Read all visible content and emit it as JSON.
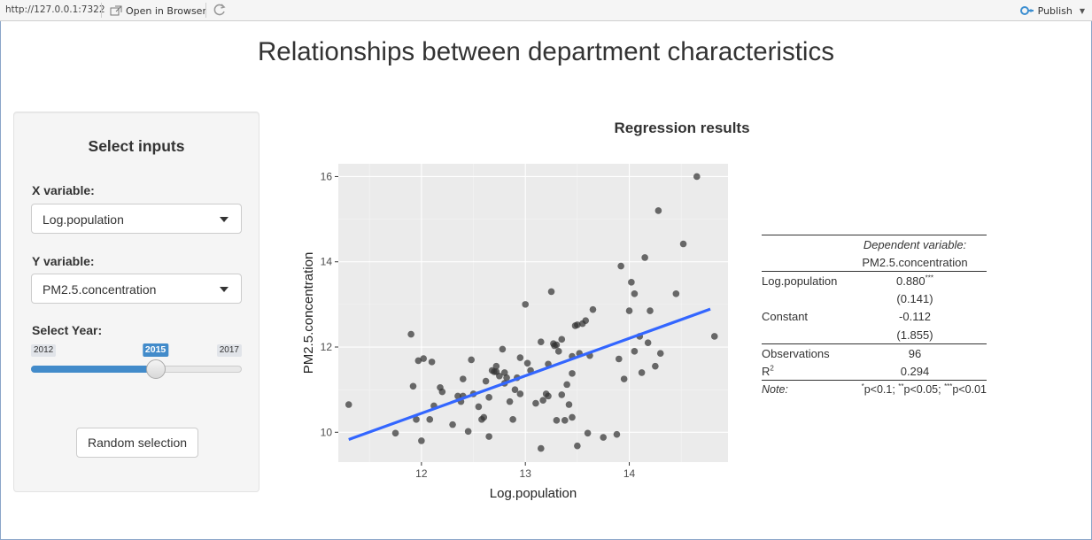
{
  "topbar": {
    "url": "http://127.0.0.1:7322",
    "open_in_browser": "Open in Browser",
    "publish": "Publish"
  },
  "page_title": "Relationships between department characteristics",
  "sidebar": {
    "title": "Select inputs",
    "x_label": "X variable:",
    "x_value": "Log.population",
    "y_label": "Y variable:",
    "y_value": "PM2.5.concentration",
    "year_label": "Select Year:",
    "year_min": "2012",
    "year_max": "2017",
    "year_value": "2015",
    "button_label": "Random selection"
  },
  "result_title": "Regression results",
  "chart_data": {
    "type": "scatter",
    "xlabel": "Log.population",
    "ylabel": "PM2.5.concentration",
    "xlim": [
      11.2,
      14.95
    ],
    "ylim": [
      9.3,
      16.3
    ],
    "xticks": [
      12,
      13,
      14
    ],
    "yticks": [
      10,
      12,
      14,
      16
    ],
    "grid": true,
    "fit_line": {
      "x": [
        11.3,
        14.78
      ],
      "y": [
        9.83,
        12.89
      ],
      "color": "#3366ff"
    },
    "point_color": "#333333",
    "series": [
      {
        "x": [
          11.3,
          11.75,
          11.9,
          11.92,
          11.95,
          11.97,
          12.0,
          12.02,
          12.08,
          12.1,
          12.12,
          12.18,
          12.2,
          12.3,
          12.35,
          12.38,
          12.4,
          12.45,
          12.48,
          12.5,
          12.55,
          12.58,
          12.6,
          12.62,
          12.65,
          12.68,
          12.7,
          12.72,
          12.75,
          12.78,
          12.8,
          12.82,
          12.85,
          12.88,
          12.9,
          12.92,
          12.95,
          13.0,
          13.02,
          13.1,
          13.15,
          13.17,
          13.2,
          13.22,
          13.25,
          13.27,
          13.3,
          13.32,
          13.35,
          13.38,
          13.4,
          13.42,
          13.45,
          13.48,
          13.5,
          13.52,
          13.55,
          13.58,
          13.6,
          13.62,
          13.65,
          13.75,
          13.88,
          13.9,
          13.92,
          13.95,
          14.0,
          14.02,
          14.05,
          14.1,
          14.12,
          14.15,
          14.18,
          14.2,
          14.25,
          14.28,
          14.45,
          14.52,
          14.65,
          14.82,
          13.35,
          13.15,
          12.95,
          12.72,
          13.05,
          13.28,
          14.05,
          13.3,
          12.65,
          12.8,
          13.5,
          13.22,
          12.4,
          14.3,
          13.45,
          13.45
        ],
        "y": [
          10.65,
          9.98,
          12.3,
          11.08,
          10.3,
          11.68,
          9.8,
          11.73,
          10.3,
          11.65,
          10.62,
          11.05,
          10.95,
          10.18,
          10.85,
          10.72,
          10.85,
          10.02,
          11.7,
          10.9,
          10.6,
          10.3,
          10.35,
          11.2,
          9.9,
          11.45,
          11.42,
          11.42,
          11.32,
          11.95,
          11.15,
          11.28,
          10.72,
          10.3,
          11.0,
          11.28,
          10.9,
          13.0,
          11.62,
          10.68,
          12.12,
          10.75,
          10.9,
          11.6,
          13.3,
          12.08,
          12.05,
          11.9,
          12.18,
          10.28,
          11.12,
          10.65,
          11.78,
          12.5,
          12.52,
          11.85,
          12.55,
          12.62,
          9.98,
          11.8,
          12.88,
          9.88,
          9.95,
          11.72,
          13.9,
          11.25,
          12.85,
          13.52,
          13.25,
          12.25,
          11.4,
          14.1,
          12.1,
          12.85,
          11.55,
          15.2,
          13.25,
          14.42,
          16.0,
          12.25,
          10.88,
          9.62,
          11.75,
          11.55,
          11.45,
          12.03,
          11.9,
          10.28,
          10.82,
          11.4,
          9.68,
          10.85,
          11.25,
          11.85,
          10.35,
          11.38
        ]
      }
    ]
  },
  "regression_table": {
    "header_top": "Dependent variable:",
    "header_dv": "PM2.5.concentration",
    "rows": [
      {
        "label": "Log.population",
        "value": "0.880",
        "stars": "***"
      },
      {
        "label": "",
        "value": "(0.141)",
        "stars": ""
      },
      {
        "label": "Constant",
        "value": "-0.112",
        "stars": ""
      },
      {
        "label": "",
        "value": "(1.855)",
        "stars": ""
      }
    ],
    "observations_label": "Observations",
    "observations_value": "96",
    "r2_label": "R",
    "r2_sup": "2",
    "r2_value": "0.294",
    "note_label": "Note:",
    "note_star1": "*",
    "note_p1": "p<0.1; ",
    "note_star2": "**",
    "note_p2": "p<0.05; ",
    "note_star3": "***",
    "note_p3": "p<0.01"
  },
  "colors": {
    "accent": "#428bca",
    "fit_line": "#3366ff",
    "panel_bg": "#ebebeb",
    "sidebar_bg": "#f5f5f5",
    "frame_border": "#8aa5c8"
  },
  "icons": {
    "open_browser": "open-in-browser-icon",
    "refresh": "refresh-icon",
    "publish": "publish-icon",
    "dropdown": "caret-down-icon"
  }
}
